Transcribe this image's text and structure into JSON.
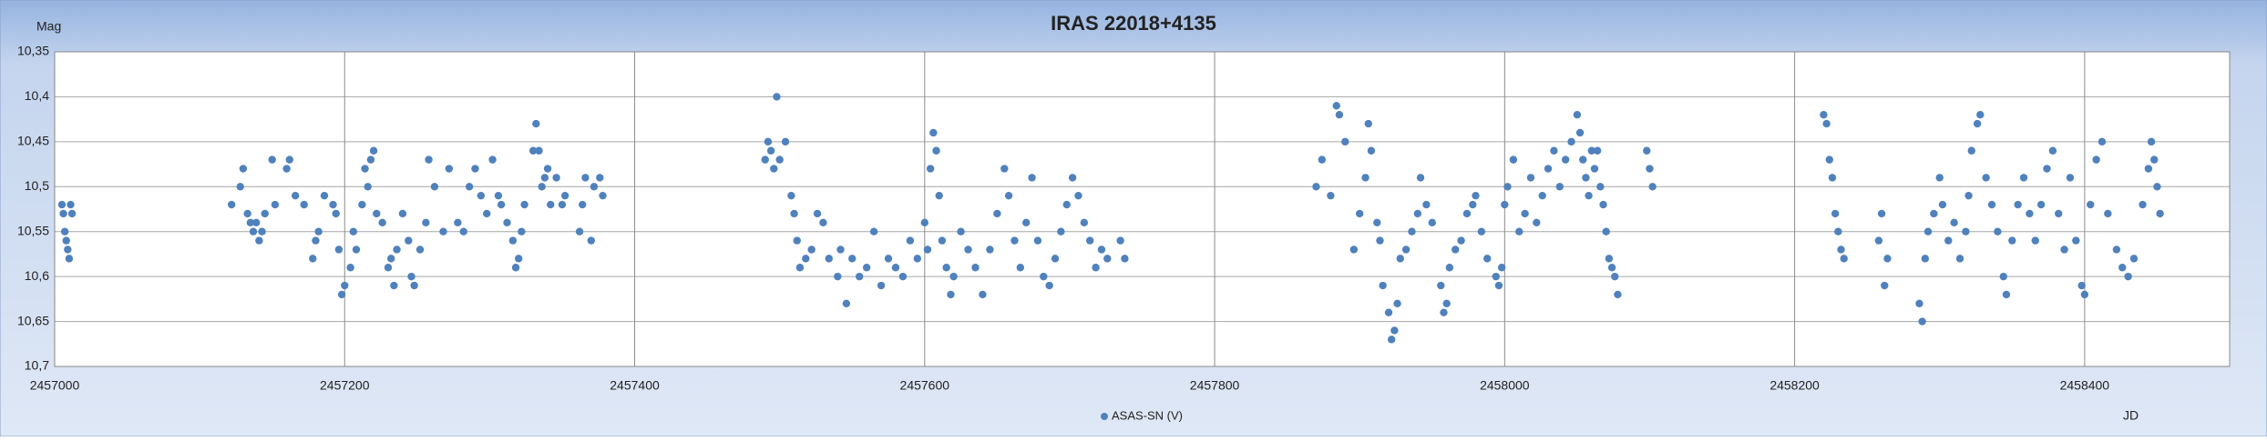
{
  "chart_data": {
    "type": "scatter",
    "title": "IRAS 22018+4135",
    "x_label": "JD",
    "y_label": "Mag",
    "xlim": [
      2457000,
      2458500
    ],
    "xticks": [
      2457000,
      2457200,
      2457400,
      2457600,
      2457800,
      2458000,
      2458200,
      2458400
    ],
    "ylim": [
      10.35,
      10.7
    ],
    "y_reversed": true,
    "yticks": [
      {
        "value": 10.35,
        "label": "10,35"
      },
      {
        "value": 10.4,
        "label": "10,4"
      },
      {
        "value": 10.45,
        "label": "10,45"
      },
      {
        "value": 10.5,
        "label": "10,5"
      },
      {
        "value": 10.55,
        "label": "10,55"
      },
      {
        "value": 10.6,
        "label": "10,6"
      },
      {
        "value": 10.65,
        "label": "10,65"
      },
      {
        "value": 10.7,
        "label": "10,7"
      }
    ],
    "grid": true,
    "legend": "bottom",
    "x": [
      2457005,
      2457006,
      2457007,
      2457008,
      2457009,
      2457010,
      2457011,
      2457012,
      2457122,
      2457128,
      2457130,
      2457133,
      2457135,
      2457137,
      2457139,
      2457141,
      2457143,
      2457145,
      2457150,
      2457152,
      2457160,
      2457162,
      2457166,
      2457172,
      2457178,
      2457180,
      2457182,
      2457186,
      2457192,
      2457194,
      2457196,
      2457198,
      2457200,
      2457204,
      2457206,
      2457208,
      2457212,
      2457214,
      2457216,
      2457218,
      2457220,
      2457222,
      2457226,
      2457230,
      2457232,
      2457234,
      2457236,
      2457240,
      2457244,
      2457246,
      2457248,
      2457252,
      2457256,
      2457258,
      2457262,
      2457268,
      2457272,
      2457278,
      2457282,
      2457286,
      2457290,
      2457294,
      2457298,
      2457302,
      2457306,
      2457308,
      2457312,
      2457316,
      2457318,
      2457320,
      2457322,
      2457324,
      2457330,
      2457332,
      2457334,
      2457336,
      2457338,
      2457340,
      2457342,
      2457346,
      2457350,
      2457352,
      2457362,
      2457364,
      2457366,
      2457370,
      2457372,
      2457376,
      2457378,
      2457490,
      2457492,
      2457494,
      2457496,
      2457498,
      2457500,
      2457504,
      2457508,
      2457510,
      2457512,
      2457514,
      2457518,
      2457522,
      2457526,
      2457530,
      2457534,
      2457540,
      2457542,
      2457546,
      2457550,
      2457555,
      2457560,
      2457565,
      2457570,
      2457575,
      2457580,
      2457585,
      2457590,
      2457595,
      2457600,
      2457602,
      2457604,
      2457606,
      2457608,
      2457610,
      2457612,
      2457615,
      2457618,
      2457620,
      2457625,
      2457630,
      2457635,
      2457640,
      2457645,
      2457650,
      2457655,
      2457658,
      2457662,
      2457666,
      2457670,
      2457674,
      2457678,
      2457682,
      2457686,
      2457690,
      2457694,
      2457698,
      2457702,
      2457706,
      2457710,
      2457714,
      2457718,
      2457722,
      2457726,
      2457735,
      2457738,
      2457870,
      2457874,
      2457880,
      2457884,
      2457886,
      2457890,
      2457896,
      2457900,
      2457904,
      2457906,
      2457908,
      2457912,
      2457914,
      2457916,
      2457920,
      2457922,
      2457924,
      2457926,
      2457928,
      2457932,
      2457936,
      2457940,
      2457942,
      2457946,
      2457950,
      2457956,
      2457958,
      2457960,
      2457962,
      2457966,
      2457970,
      2457974,
      2457978,
      2457980,
      2457984,
      2457988,
      2457994,
      2457996,
      2457998,
      2458000,
      2458002,
      2458006,
      2458010,
      2458014,
      2458018,
      2458022,
      2458026,
      2458030,
      2458034,
      2458038,
      2458042,
      2458046,
      2458050,
      2458052,
      2458054,
      2458056,
      2458058,
      2458060,
      2458062,
      2458064,
      2458066,
      2458068,
      2458070,
      2458072,
      2458074,
      2458076,
      2458078,
      2458098,
      2458100,
      2458102,
      2458220,
      2458222,
      2458224,
      2458226,
      2458228,
      2458230,
      2458232,
      2458234,
      2458258,
      2458260,
      2458262,
      2458264,
      2458286,
      2458288,
      2458290,
      2458292,
      2458296,
      2458300,
      2458302,
      2458306,
      2458310,
      2458314,
      2458318,
      2458320,
      2458322,
      2458326,
      2458328,
      2458332,
      2458336,
      2458340,
      2458344,
      2458346,
      2458350,
      2458354,
      2458358,
      2458362,
      2458366,
      2458370,
      2458374,
      2458378,
      2458382,
      2458386,
      2458390,
      2458394,
      2458398,
      2458400,
      2458404,
      2458408,
      2458412,
      2458416,
      2458422,
      2458426,
      2458430,
      2458434,
      2458440,
      2458444,
      2458446,
      2458448,
      2458450,
      2458452
    ],
    "series": [
      {
        "name": "ASAS-SN (V)",
        "color": "#4f81bd",
        "values": [
          10.52,
          10.53,
          10.55,
          10.56,
          10.57,
          10.58,
          10.52,
          10.53,
          10.52,
          10.5,
          10.48,
          10.53,
          10.54,
          10.55,
          10.54,
          10.56,
          10.55,
          10.53,
          10.47,
          10.52,
          10.48,
          10.47,
          10.51,
          10.52,
          10.58,
          10.56,
          10.55,
          10.51,
          10.52,
          10.53,
          10.57,
          10.62,
          10.61,
          10.59,
          10.55,
          10.57,
          10.52,
          10.48,
          10.5,
          10.47,
          10.46,
          10.53,
          10.54,
          10.59,
          10.58,
          10.61,
          10.57,
          10.53,
          10.56,
          10.6,
          10.61,
          10.57,
          10.54,
          10.47,
          10.5,
          10.55,
          10.48,
          10.54,
          10.55,
          10.5,
          10.48,
          10.51,
          10.53,
          10.47,
          10.51,
          10.52,
          10.54,
          10.56,
          10.59,
          10.58,
          10.55,
          10.52,
          10.46,
          10.43,
          10.46,
          10.5,
          10.49,
          10.48,
          10.52,
          10.49,
          10.52,
          10.51,
          10.55,
          10.52,
          10.49,
          10.56,
          10.5,
          10.49,
          10.51,
          10.47,
          10.45,
          10.46,
          10.48,
          10.4,
          10.47,
          10.45,
          10.51,
          10.53,
          10.56,
          10.59,
          10.58,
          10.57,
          10.53,
          10.54,
          10.58,
          10.6,
          10.57,
          10.63,
          10.58,
          10.6,
          10.59,
          10.55,
          10.61,
          10.58,
          10.59,
          10.6,
          10.56,
          10.58,
          10.54,
          10.57,
          10.48,
          10.44,
          10.46,
          10.51,
          10.56,
          10.59,
          10.62,
          10.6,
          10.55,
          10.57,
          10.59,
          10.62,
          10.57,
          10.53,
          10.48,
          10.51,
          10.56,
          10.59,
          10.54,
          10.49,
          10.56,
          10.6,
          10.61,
          10.58,
          10.55,
          10.52,
          10.49,
          10.51,
          10.54,
          10.56,
          10.59,
          10.57,
          10.58,
          10.56,
          10.58,
          10.5,
          10.47,
          10.51,
          10.41,
          10.42,
          10.45,
          10.57,
          10.53,
          10.49,
          10.43,
          10.46,
          10.54,
          10.56,
          10.61,
          10.64,
          10.67,
          10.66,
          10.63,
          10.58,
          10.57,
          10.55,
          10.53,
          10.49,
          10.52,
          10.54,
          10.61,
          10.64,
          10.63,
          10.59,
          10.57,
          10.56,
          10.53,
          10.52,
          10.51,
          10.55,
          10.58,
          10.6,
          10.61,
          10.59,
          10.52,
          10.5,
          10.47,
          10.55,
          10.53,
          10.49,
          10.54,
          10.51,
          10.48,
          10.46,
          10.5,
          10.47,
          10.45,
          10.42,
          10.44,
          10.47,
          10.49,
          10.51,
          10.46,
          10.48,
          10.46,
          10.5,
          10.52,
          10.55,
          10.58,
          10.59,
          10.6,
          10.62,
          10.46,
          10.48,
          10.5,
          10.42,
          10.43,
          10.47,
          10.49,
          10.53,
          10.55,
          10.57,
          10.58,
          10.56,
          10.53,
          10.61,
          10.58,
          10.63,
          10.65,
          10.58,
          10.55,
          10.53,
          10.49,
          10.52,
          10.56,
          10.54,
          10.58,
          10.55,
          10.51,
          10.46,
          10.43,
          10.42,
          10.49,
          10.52,
          10.55,
          10.6,
          10.62,
          10.56,
          10.52,
          10.49,
          10.53,
          10.56,
          10.52,
          10.48,
          10.46,
          10.53,
          10.57,
          10.49,
          10.56,
          10.61,
          10.62,
          10.52,
          10.47,
          10.45,
          10.53,
          10.57,
          10.59,
          10.6,
          10.58,
          10.52,
          10.48,
          10.45,
          10.47,
          10.5,
          10.53
        ]
      }
    ]
  }
}
